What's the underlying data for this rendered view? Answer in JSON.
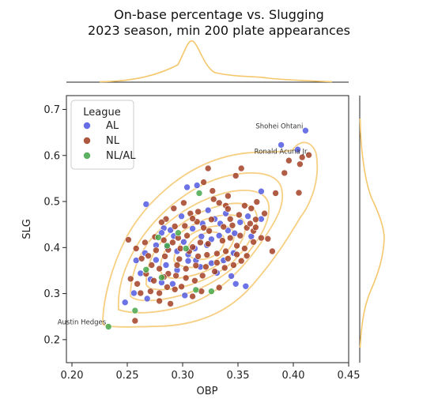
{
  "chart_data": {
    "type": "scatter",
    "title": "On-base percentage vs. Slugging",
    "subtitle": "2023 season, min 200 plate appearances",
    "xlabel": "OBP",
    "ylabel": "SLG",
    "xlim": [
      0.195,
      0.45
    ],
    "ylim": [
      0.15,
      0.73
    ],
    "xticks": [
      "0.20",
      "0.25",
      "0.30",
      "0.35",
      "0.40",
      "0.45"
    ],
    "yticks": [
      "0.2",
      "0.3",
      "0.4",
      "0.5",
      "0.6",
      "0.7"
    ],
    "legend": {
      "title": "League",
      "placement": "top-left",
      "entries": [
        {
          "label": "AL",
          "color": "#4c54e0"
        },
        {
          "label": "NL",
          "color": "#a0391d"
        },
        {
          "label": "NL/AL",
          "color": "#3fa544"
        }
      ]
    },
    "marginal_color": "#f4c76c",
    "series": [
      {
        "name": "AL",
        "color": "#4c54e0",
        "points": [
          [
            0.411,
            0.654
          ],
          [
            0.389,
            0.623
          ],
          [
            0.404,
            0.613
          ],
          [
            0.371,
            0.522
          ],
          [
            0.304,
            0.531
          ],
          [
            0.313,
            0.535
          ],
          [
            0.267,
            0.494
          ],
          [
            0.283,
            0.442
          ],
          [
            0.292,
            0.425
          ],
          [
            0.301,
            0.412
          ],
          [
            0.311,
            0.398
          ],
          [
            0.322,
            0.405
          ],
          [
            0.333,
            0.426
          ],
          [
            0.341,
            0.437
          ],
          [
            0.276,
            0.373
          ],
          [
            0.285,
            0.362
          ],
          [
            0.295,
            0.351
          ],
          [
            0.305,
            0.385
          ],
          [
            0.316,
            0.358
          ],
          [
            0.326,
            0.366
          ],
          [
            0.337,
            0.372
          ],
          [
            0.346,
            0.388
          ],
          [
            0.262,
            0.344
          ],
          [
            0.271,
            0.331
          ],
          [
            0.281,
            0.324
          ],
          [
            0.256,
            0.301
          ],
          [
            0.268,
            0.289
          ],
          [
            0.248,
            0.281
          ],
          [
            0.318,
            0.452
          ],
          [
            0.329,
            0.462
          ],
          [
            0.339,
            0.474
          ],
          [
            0.352,
            0.455
          ],
          [
            0.359,
            0.468
          ],
          [
            0.299,
            0.468
          ],
          [
            0.309,
            0.441
          ],
          [
            0.323,
            0.481
          ],
          [
            0.295,
            0.392
          ],
          [
            0.286,
            0.401
          ],
          [
            0.276,
            0.405
          ],
          [
            0.266,
            0.388
          ],
          [
            0.258,
            0.372
          ],
          [
            0.312,
            0.372
          ],
          [
            0.348,
            0.321
          ],
          [
            0.357,
            0.316
          ],
          [
            0.344,
            0.338
          ],
          [
            0.362,
            0.424
          ],
          [
            0.371,
            0.462
          ],
          [
            0.302,
            0.296
          ],
          [
            0.291,
            0.321
          ],
          [
            0.331,
            0.345
          ],
          [
            0.326,
            0.418
          ],
          [
            0.317,
            0.424
          ],
          [
            0.289,
            0.438
          ],
          [
            0.281,
            0.432
          ],
          [
            0.334,
            0.452
          ],
          [
            0.305,
            0.371
          ],
          [
            0.347,
            0.431
          ]
        ]
      },
      {
        "name": "NL",
        "color": "#a0391d",
        "points": [
          [
            0.408,
            0.596
          ],
          [
            0.414,
            0.601
          ],
          [
            0.406,
            0.581
          ],
          [
            0.396,
            0.589
          ],
          [
            0.392,
            0.562
          ],
          [
            0.405,
            0.519
          ],
          [
            0.384,
            0.518
          ],
          [
            0.367,
            0.499
          ],
          [
            0.362,
            0.485
          ],
          [
            0.353,
            0.572
          ],
          [
            0.323,
            0.572
          ],
          [
            0.319,
            0.542
          ],
          [
            0.327,
            0.523
          ],
          [
            0.341,
            0.512
          ],
          [
            0.328,
            0.505
          ],
          [
            0.301,
            0.497
          ],
          [
            0.292,
            0.485
          ],
          [
            0.285,
            0.462
          ],
          [
            0.281,
            0.455
          ],
          [
            0.293,
            0.446
          ],
          [
            0.302,
            0.447
          ],
          [
            0.313,
            0.456
          ],
          [
            0.319,
            0.443
          ],
          [
            0.324,
            0.436
          ],
          [
            0.337,
            0.445
          ],
          [
            0.343,
            0.462
          ],
          [
            0.351,
            0.471
          ],
          [
            0.358,
            0.443
          ],
          [
            0.364,
            0.436
          ],
          [
            0.371,
            0.421
          ],
          [
            0.381,
            0.392
          ],
          [
            0.377,
            0.419
          ],
          [
            0.364,
            0.412
          ],
          [
            0.356,
            0.398
          ],
          [
            0.349,
            0.404
          ],
          [
            0.339,
            0.392
          ],
          [
            0.331,
            0.387
          ],
          [
            0.322,
            0.384
          ],
          [
            0.314,
            0.381
          ],
          [
            0.306,
            0.392
          ],
          [
            0.298,
            0.398
          ],
          [
            0.291,
            0.411
          ],
          [
            0.283,
            0.416
          ],
          [
            0.275,
            0.423
          ],
          [
            0.266,
            0.411
          ],
          [
            0.258,
            0.398
          ],
          [
            0.251,
            0.417
          ],
          [
            0.263,
            0.376
          ],
          [
            0.272,
            0.362
          ],
          [
            0.279,
            0.354
          ],
          [
            0.287,
            0.343
          ],
          [
            0.294,
            0.339
          ],
          [
            0.303,
            0.334
          ],
          [
            0.311,
            0.328
          ],
          [
            0.318,
            0.339
          ],
          [
            0.329,
            0.348
          ],
          [
            0.338,
            0.356
          ],
          [
            0.346,
            0.362
          ],
          [
            0.353,
            0.371
          ],
          [
            0.358,
            0.382
          ],
          [
            0.262,
            0.301
          ],
          [
            0.271,
            0.305
          ],
          [
            0.279,
            0.301
          ],
          [
            0.286,
            0.314
          ],
          [
            0.293,
            0.309
          ],
          [
            0.299,
            0.315
          ],
          [
            0.259,
            0.321
          ],
          [
            0.253,
            0.332
          ],
          [
            0.267,
            0.343
          ],
          [
            0.279,
            0.284
          ],
          [
            0.289,
            0.278
          ],
          [
            0.309,
            0.294
          ],
          [
            0.317,
            0.305
          ],
          [
            0.333,
            0.313
          ],
          [
            0.257,
            0.241
          ],
          [
            0.348,
            0.556
          ],
          [
            0.339,
            0.491
          ],
          [
            0.333,
            0.497
          ],
          [
            0.314,
            0.478
          ],
          [
            0.307,
            0.474
          ],
          [
            0.296,
            0.421
          ],
          [
            0.304,
            0.426
          ],
          [
            0.309,
            0.401
          ],
          [
            0.316,
            0.411
          ],
          [
            0.323,
            0.408
          ],
          [
            0.336,
            0.415
          ],
          [
            0.343,
            0.421
          ],
          [
            0.352,
            0.426
          ],
          [
            0.361,
            0.452
          ],
          [
            0.366,
            0.461
          ],
          [
            0.345,
            0.448
          ],
          [
            0.326,
            0.461
          ],
          [
            0.309,
            0.463
          ],
          [
            0.287,
            0.395
          ],
          [
            0.276,
            0.394
          ],
          [
            0.269,
            0.382
          ],
          [
            0.284,
            0.381
          ],
          [
            0.297,
            0.375
          ],
          [
            0.312,
            0.361
          ],
          [
            0.321,
            0.358
          ],
          [
            0.331,
            0.367
          ],
          [
            0.341,
            0.376
          ],
          [
            0.349,
            0.385
          ],
          [
            0.303,
            0.354
          ],
          [
            0.295,
            0.362
          ],
          [
            0.283,
            0.336
          ],
          [
            0.274,
            0.328
          ],
          [
            0.366,
            0.444
          ],
          [
            0.374,
            0.474
          ],
          [
            0.356,
            0.491
          ],
          [
            0.341,
            0.484
          ]
        ]
      },
      {
        "name": "NL/AL",
        "color": "#3fa544",
        "points": [
          [
            0.233,
            0.228
          ],
          [
            0.257,
            0.263
          ],
          [
            0.315,
            0.518
          ],
          [
            0.326,
            0.305
          ],
          [
            0.296,
            0.432
          ],
          [
            0.286,
            0.404
          ],
          [
            0.267,
            0.352
          ],
          [
            0.312,
            0.308
          ],
          [
            0.303,
            0.398
          ],
          [
            0.281,
            0.335
          ],
          [
            0.278,
            0.422
          ]
        ]
      }
    ],
    "annotations": [
      {
        "text": "Shohei Ohtani",
        "x": 0.411,
        "y": 0.654
      },
      {
        "text": "Ronald Acuna Jr.",
        "x": 0.416,
        "y": 0.599
      },
      {
        "text": "Austin Hedges",
        "x": 0.233,
        "y": 0.228
      }
    ]
  }
}
